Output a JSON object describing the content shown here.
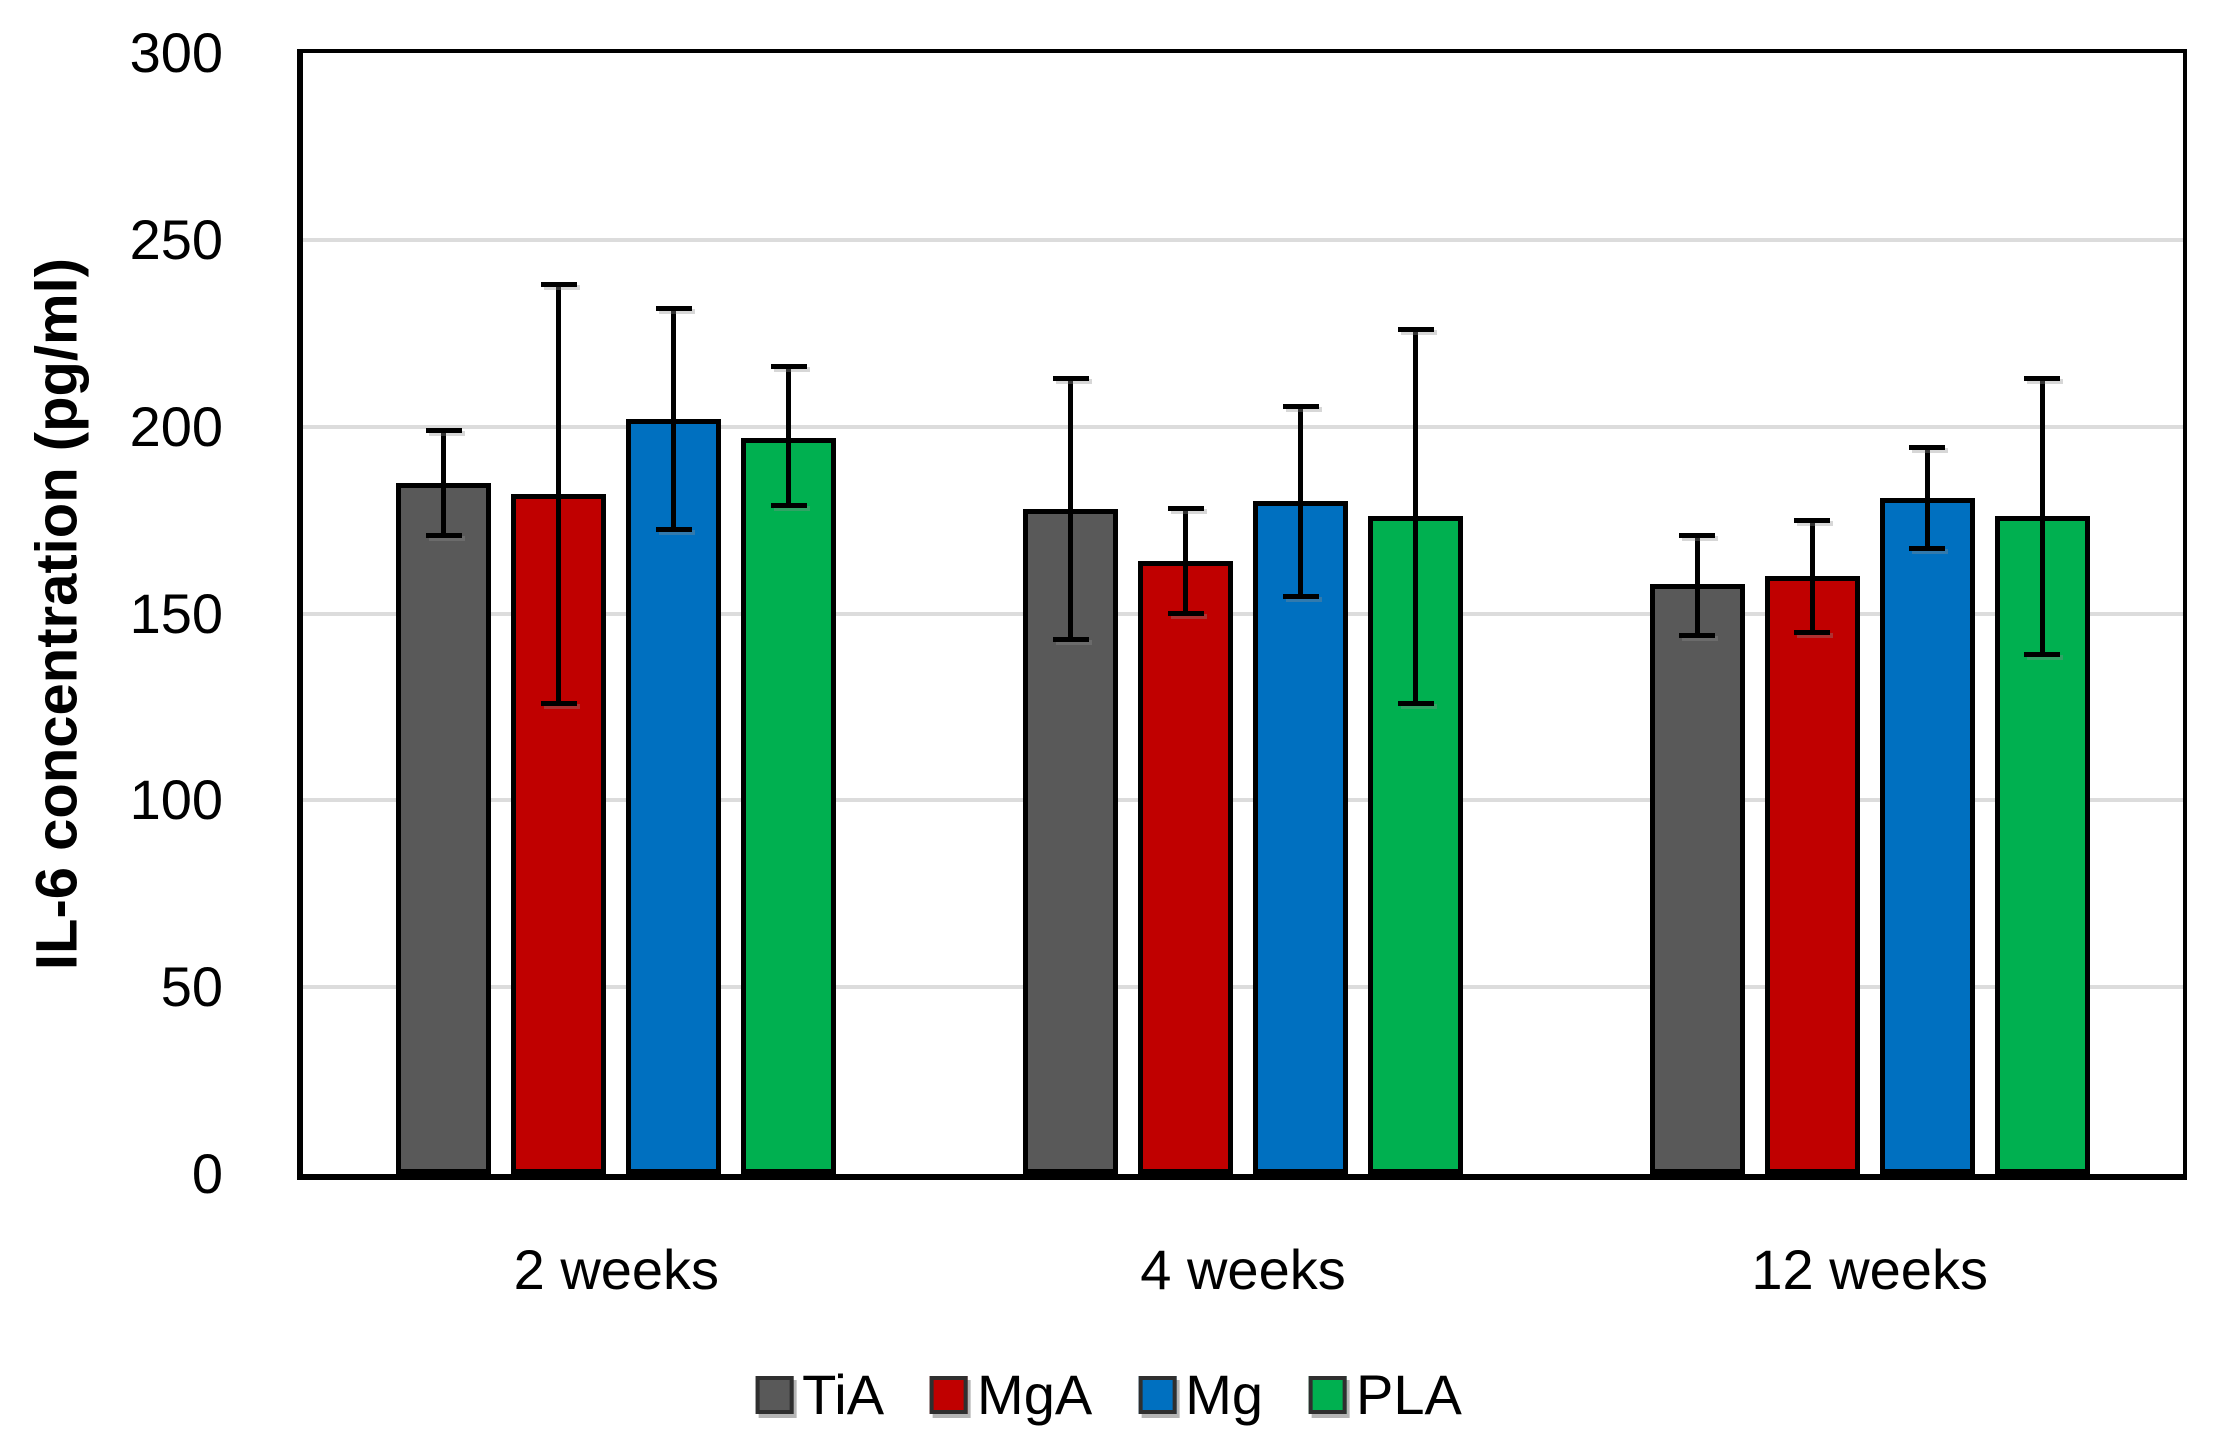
{
  "figure": {
    "background": "#FFFFFF",
    "axis_color": "#000000",
    "text_color": "#000000"
  },
  "chart_data": {
    "type": "bar",
    "title": "",
    "xlabel": "",
    "ylabel": "IL-6 concentration (pg/ml)",
    "categories": [
      "2 weeks",
      "4 weeks",
      "12 weeks"
    ],
    "series": [
      {
        "name": "TiA",
        "color": "#595959",
        "values": [
          185,
          178,
          158
        ],
        "error_plus": [
          14,
          35,
          13
        ],
        "error_minus": [
          14,
          35,
          14
        ]
      },
      {
        "name": "MgA",
        "color": "#C00000",
        "values": [
          182,
          164,
          160
        ],
        "error_plus": [
          56,
          14,
          15
        ],
        "error_minus": [
          56,
          14,
          15
        ]
      },
      {
        "name": "Mg",
        "color": "#0070C0",
        "values": [
          202,
          180,
          181
        ],
        "error_plus": [
          29.5,
          25.5,
          13.5
        ],
        "error_minus": [
          29.5,
          25.5,
          13.5
        ]
      },
      {
        "name": "PLA",
        "color": "#00B050",
        "values": [
          197,
          176,
          176
        ],
        "error_plus": [
          19,
          50,
          37
        ],
        "error_minus": [
          18,
          50,
          37
        ]
      }
    ],
    "ylim": [
      0,
      300
    ],
    "yticks": [
      0,
      50,
      100,
      150,
      200,
      250,
      300
    ],
    "grid": true,
    "grid_color": "#DCDCDC",
    "legend_position": "bottom",
    "legend_labels": [
      "TiA",
      "MgA",
      "Mg",
      "PLA"
    ]
  }
}
